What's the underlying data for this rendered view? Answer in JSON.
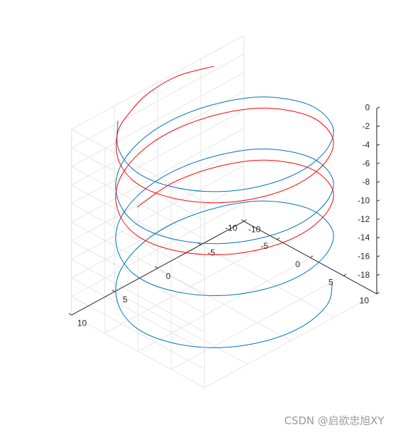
{
  "chart_data": {
    "type": "line",
    "view": "3d",
    "grid": true,
    "xlim": [
      -10,
      10
    ],
    "ylim": [
      -10,
      10
    ],
    "zlim": [
      -20,
      0
    ],
    "x_ticks": [
      -10,
      -5,
      0,
      5,
      10
    ],
    "y_ticks": [
      -10,
      -5,
      0,
      5,
      10
    ],
    "z_ticks": [
      0,
      -2,
      -4,
      -6,
      -8,
      -10,
      -12,
      -14,
      -16,
      -18
    ],
    "series": [
      {
        "color": "#0072BD",
        "points": [
          [
            6.4,
            -7.7,
            0.0
          ],
          [
            9.0,
            -4.2,
            -0.4
          ],
          [
            10.0,
            0.0,
            -0.8
          ],
          [
            9.0,
            4.2,
            -1.2
          ],
          [
            6.4,
            7.7,
            -1.6
          ],
          [
            2.6,
            9.7,
            -2.0
          ],
          [
            -1.6,
            9.9,
            -2.4
          ],
          [
            -5.7,
            8.2,
            -2.8
          ],
          [
            -8.7,
            5.0,
            -3.2
          ],
          [
            -10.0,
            0.0,
            -3.6
          ],
          [
            -8.7,
            -5.0,
            -4.0
          ],
          [
            -5.7,
            -8.2,
            -4.4
          ],
          [
            -1.6,
            -9.9,
            -4.8
          ],
          [
            2.6,
            -9.7,
            -5.2
          ],
          [
            6.4,
            -7.7,
            -5.6
          ],
          [
            9.0,
            -4.2,
            -6.0
          ],
          [
            10.0,
            0.0,
            -6.4
          ],
          [
            9.0,
            4.2,
            -6.8
          ],
          [
            6.4,
            7.7,
            -7.2
          ],
          [
            2.6,
            9.7,
            -7.6
          ],
          [
            -1.6,
            9.9,
            -8.0
          ],
          [
            -5.7,
            8.2,
            -8.4
          ],
          [
            -8.7,
            5.0,
            -8.8
          ],
          [
            -10.0,
            0.0,
            -9.2
          ],
          [
            -8.7,
            -5.0,
            -9.6
          ],
          [
            -5.7,
            -8.2,
            -10.0
          ],
          [
            -1.6,
            -9.9,
            -10.4
          ],
          [
            2.6,
            -9.7,
            -10.8
          ],
          [
            6.4,
            -7.7,
            -11.2
          ],
          [
            9.0,
            -4.2,
            -11.6
          ],
          [
            10.0,
            0.0,
            -12.0
          ],
          [
            9.0,
            4.2,
            -12.4
          ],
          [
            6.4,
            7.7,
            -12.8
          ],
          [
            2.6,
            9.7,
            -13.2
          ],
          [
            -1.6,
            9.9,
            -13.6
          ],
          [
            -5.7,
            8.2,
            -14.0
          ],
          [
            -8.7,
            5.0,
            -14.4
          ],
          [
            -10.0,
            0.0,
            -14.8
          ],
          [
            -8.7,
            -5.0,
            -15.2
          ],
          [
            -5.7,
            -8.2,
            -15.6
          ],
          [
            -1.6,
            -9.9,
            -16.0
          ],
          [
            2.6,
            -9.7,
            -16.4
          ],
          [
            6.4,
            -7.7,
            -16.8
          ],
          [
            9.0,
            -4.2,
            -17.2
          ],
          [
            10.0,
            0.0,
            -17.6
          ],
          [
            9.0,
            4.2,
            -18.0
          ],
          [
            6.4,
            7.7,
            -18.4
          ],
          [
            2.6,
            9.7,
            -18.8
          ],
          [
            -1.6,
            9.9,
            -19.2
          ],
          [
            -5.7,
            8.2,
            -19.6
          ],
          [
            -8.7,
            5.0,
            -20.0
          ]
        ]
      },
      {
        "color": "#FF0000",
        "points": [
          [
            -5.0,
            -8.0,
            0.0
          ],
          [
            -2.0,
            -9.5,
            -0.1
          ],
          [
            1.0,
            -10.0,
            -0.6
          ],
          [
            3.5,
            -9.4,
            -1.0
          ],
          [
            6.4,
            -7.7,
            -1.2
          ],
          [
            9.0,
            -4.2,
            -1.6
          ],
          [
            10.0,
            0.0,
            -2.0
          ],
          [
            9.0,
            4.2,
            -2.4
          ],
          [
            6.4,
            7.7,
            -2.8
          ],
          [
            2.6,
            9.7,
            -3.2
          ],
          [
            -1.6,
            9.9,
            -3.6
          ],
          [
            -5.7,
            8.2,
            -4.0
          ],
          [
            -8.7,
            5.0,
            -4.4
          ],
          [
            -10.0,
            0.0,
            -4.8
          ],
          [
            -8.7,
            -5.0,
            -5.2
          ],
          [
            -5.7,
            -8.2,
            -5.6
          ],
          [
            -1.6,
            -9.9,
            -6.0
          ],
          [
            2.6,
            -9.7,
            -6.4
          ],
          [
            6.4,
            -7.7,
            -6.8
          ],
          [
            9.0,
            -4.2,
            -7.2
          ],
          [
            10.0,
            0.0,
            -7.6
          ],
          [
            9.0,
            4.2,
            -8.0
          ],
          [
            6.4,
            7.7,
            -8.4
          ],
          [
            2.6,
            9.7,
            -8.8
          ],
          [
            -1.6,
            9.9,
            -9.2
          ],
          [
            -5.7,
            8.2,
            -9.6
          ],
          [
            -8.7,
            5.0,
            -10.0
          ],
          [
            -10.0,
            0.0,
            -10.4
          ],
          [
            -8.7,
            -5.0,
            -10.8
          ],
          [
            -5.7,
            -8.2,
            -11.2
          ],
          [
            -1.6,
            -9.9,
            -11.6
          ],
          [
            2.6,
            -9.7,
            -12.0
          ]
        ]
      }
    ]
  },
  "watermark": "CSDN @启欲忠旭XY"
}
